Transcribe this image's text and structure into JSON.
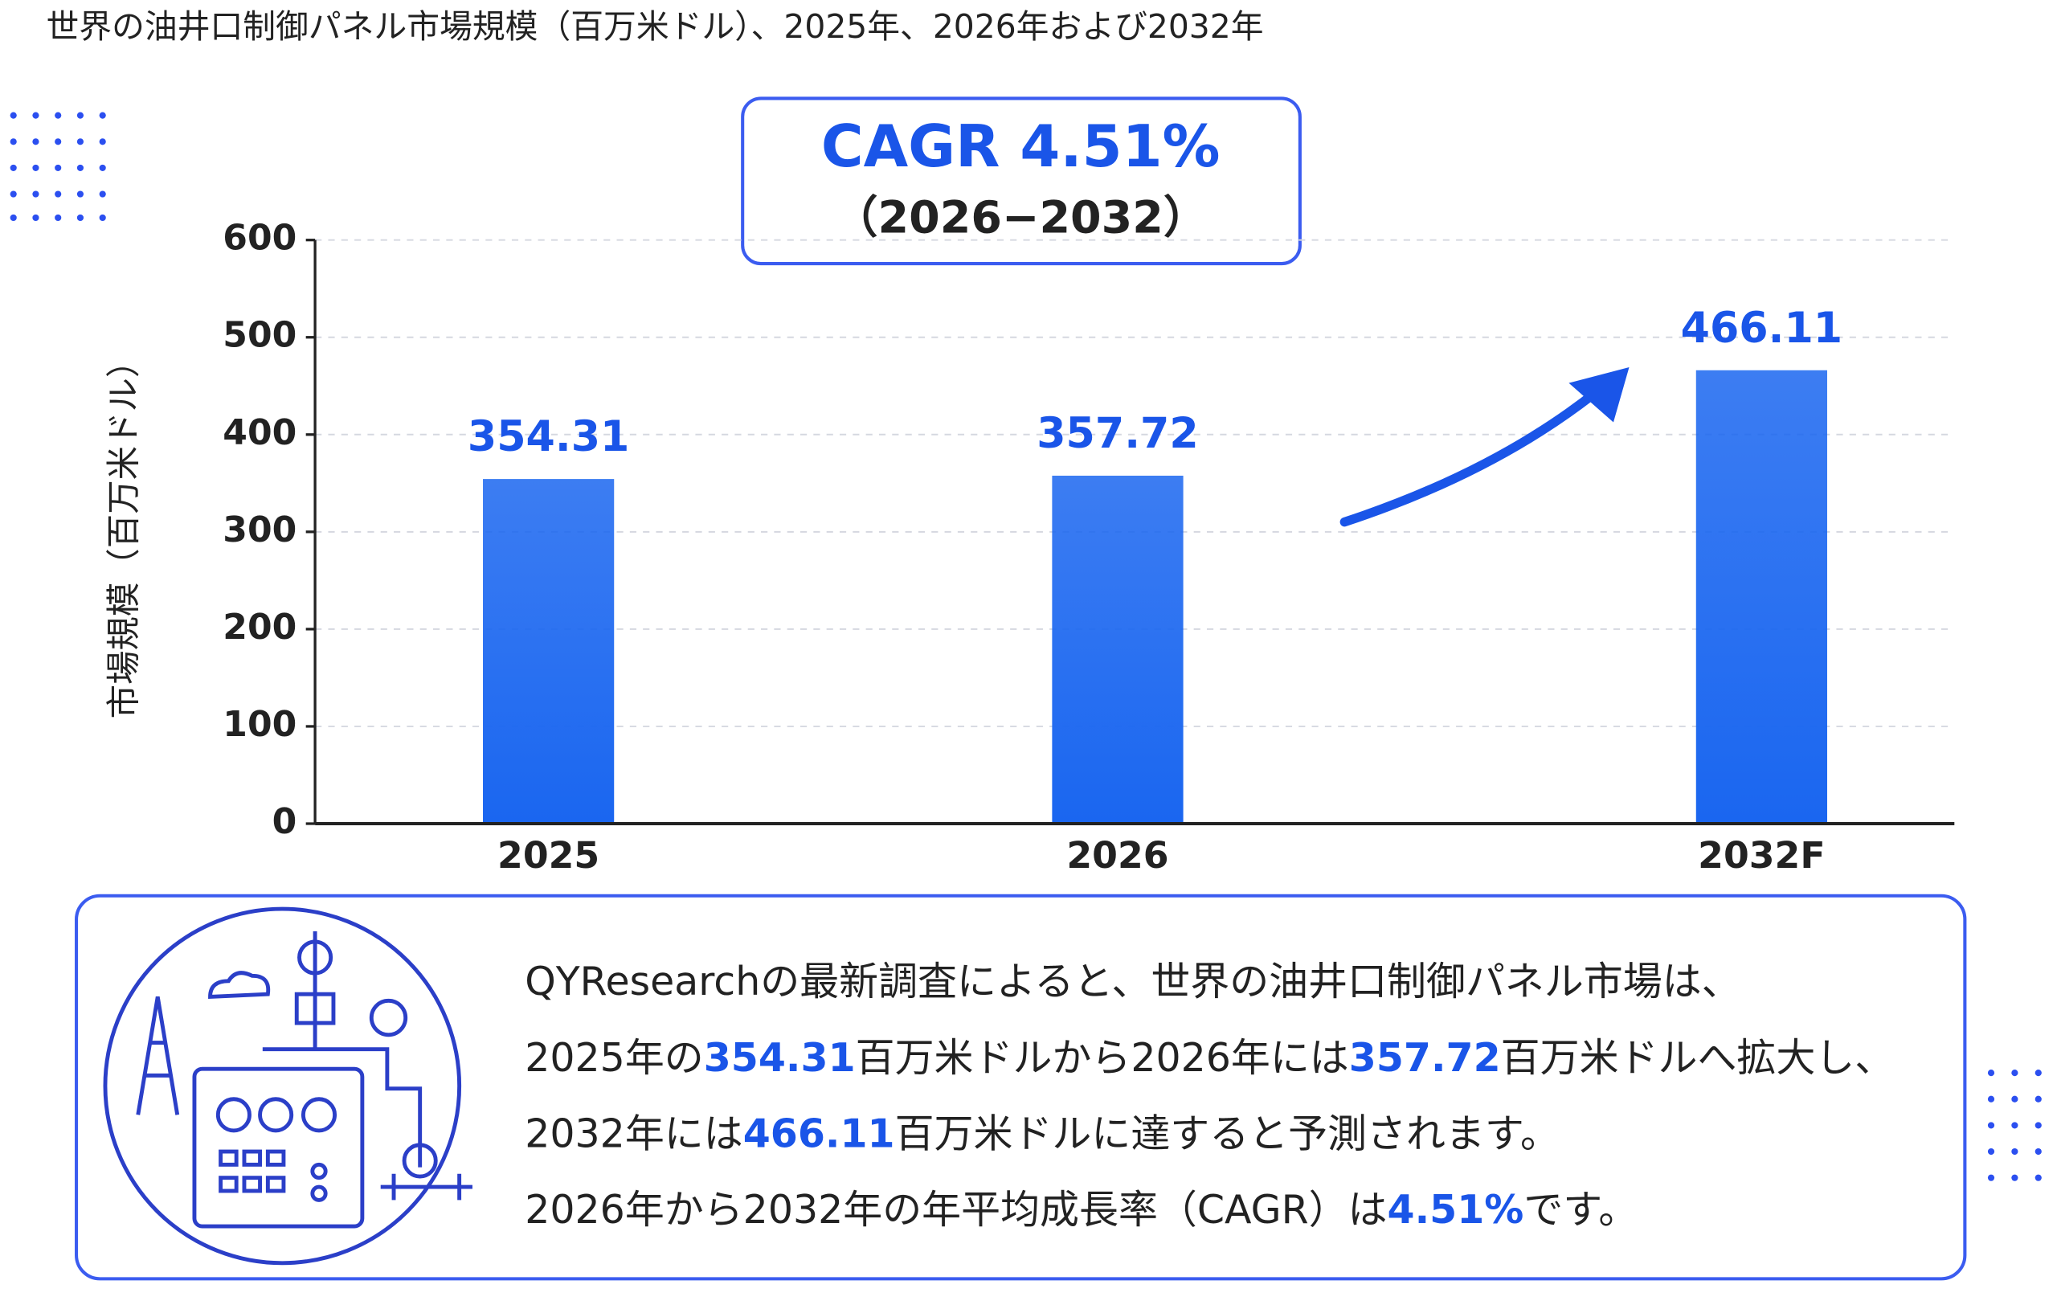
{
  "chart_data": {
    "type": "bar",
    "title": "世界の油井口制御パネル市場規模（百万米ドル）、2025年、2026年および2032年",
    "y_label": "市場規模（百万米ドル）",
    "categories": [
      "2025",
      "2026",
      "2032F"
    ],
    "values": [
      354.31,
      357.72,
      466.11
    ],
    "color": "#1a66f0",
    "ylim": [
      0,
      600
    ],
    "yticks": [
      0,
      100,
      200,
      300,
      400,
      500,
      600
    ],
    "grid": true
  },
  "cagr_box": {
    "headline": "CAGR 4.51%",
    "period": "（2026−2032）"
  },
  "summary": {
    "lines": [
      [
        {
          "text": "QYResearchの最新調査によると、世界の油井口制御パネル市場は、",
          "emphasis": false
        }
      ],
      [
        {
          "text": "2025年の",
          "emphasis": false
        },
        {
          "text": "354.31",
          "emphasis": true
        },
        {
          "text": "百万米ドルから2026年には",
          "emphasis": false
        },
        {
          "text": "357.72",
          "emphasis": true
        },
        {
          "text": "百万米ドルへ拡大し、",
          "emphasis": false
        }
      ],
      [
        {
          "text": "2032年には",
          "emphasis": false
        },
        {
          "text": "466.11",
          "emphasis": true
        },
        {
          "text": "百万米ドルに達すると予測されます。",
          "emphasis": false
        }
      ],
      [
        {
          "text": "2026年から2032年の年平均成長率（CAGR）は",
          "emphasis": false
        },
        {
          "text": "4.51%",
          "emphasis": true
        },
        {
          "text": "です。",
          "emphasis": false
        }
      ]
    ]
  }
}
